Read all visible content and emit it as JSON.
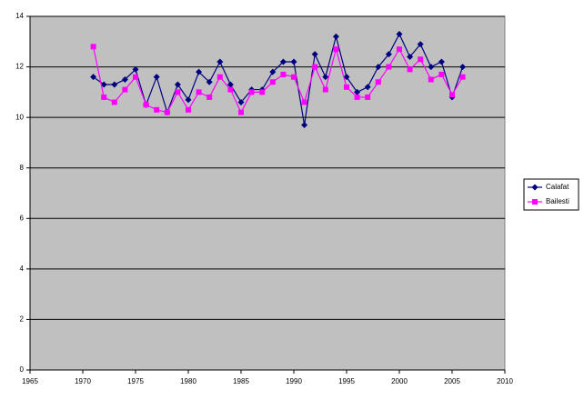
{
  "chart_data": {
    "type": "line",
    "x": [
      1971,
      1972,
      1973,
      1974,
      1975,
      1976,
      1977,
      1978,
      1979,
      1980,
      1981,
      1982,
      1983,
      1984,
      1985,
      1986,
      1987,
      1988,
      1989,
      1990,
      1991,
      1992,
      1993,
      1994,
      1995,
      1996,
      1997,
      1998,
      1999,
      2000,
      2001,
      2002,
      2003,
      2004,
      2005,
      2006
    ],
    "series": [
      {
        "name": "Calafat",
        "color": "#000080",
        "marker": "diamond",
        "values": [
          11.6,
          11.3,
          11.3,
          11.5,
          11.9,
          10.5,
          11.6,
          10.2,
          11.3,
          10.7,
          11.8,
          11.4,
          12.2,
          11.3,
          10.6,
          11.1,
          11.1,
          11.8,
          12.2,
          12.2,
          9.7,
          12.5,
          11.6,
          13.2,
          11.6,
          11.0,
          11.2,
          12.0,
          12.5,
          13.3,
          12.4,
          12.9,
          12.0,
          12.2,
          10.8,
          12.0
        ]
      },
      {
        "name": "Bailesti",
        "color": "#ff00ff",
        "marker": "square",
        "values": [
          12.8,
          10.8,
          10.6,
          11.1,
          11.6,
          10.5,
          10.3,
          10.2,
          11.0,
          10.3,
          11.0,
          10.8,
          11.6,
          11.1,
          10.2,
          11.0,
          11.0,
          11.4,
          11.7,
          11.6,
          10.6,
          12.0,
          11.1,
          12.7,
          11.2,
          10.8,
          10.8,
          11.4,
          12.0,
          12.7,
          11.9,
          12.3,
          11.5,
          11.7,
          10.9,
          11.6
        ]
      }
    ],
    "xlim": [
      1965,
      2010
    ],
    "xticks": [
      1965,
      1970,
      1975,
      1980,
      1985,
      1990,
      1995,
      2000,
      2005,
      2010
    ],
    "ylim": [
      0,
      14
    ],
    "yticks": [
      0,
      2,
      4,
      6,
      8,
      10,
      12,
      14
    ],
    "grid": true,
    "legend": "right"
  }
}
